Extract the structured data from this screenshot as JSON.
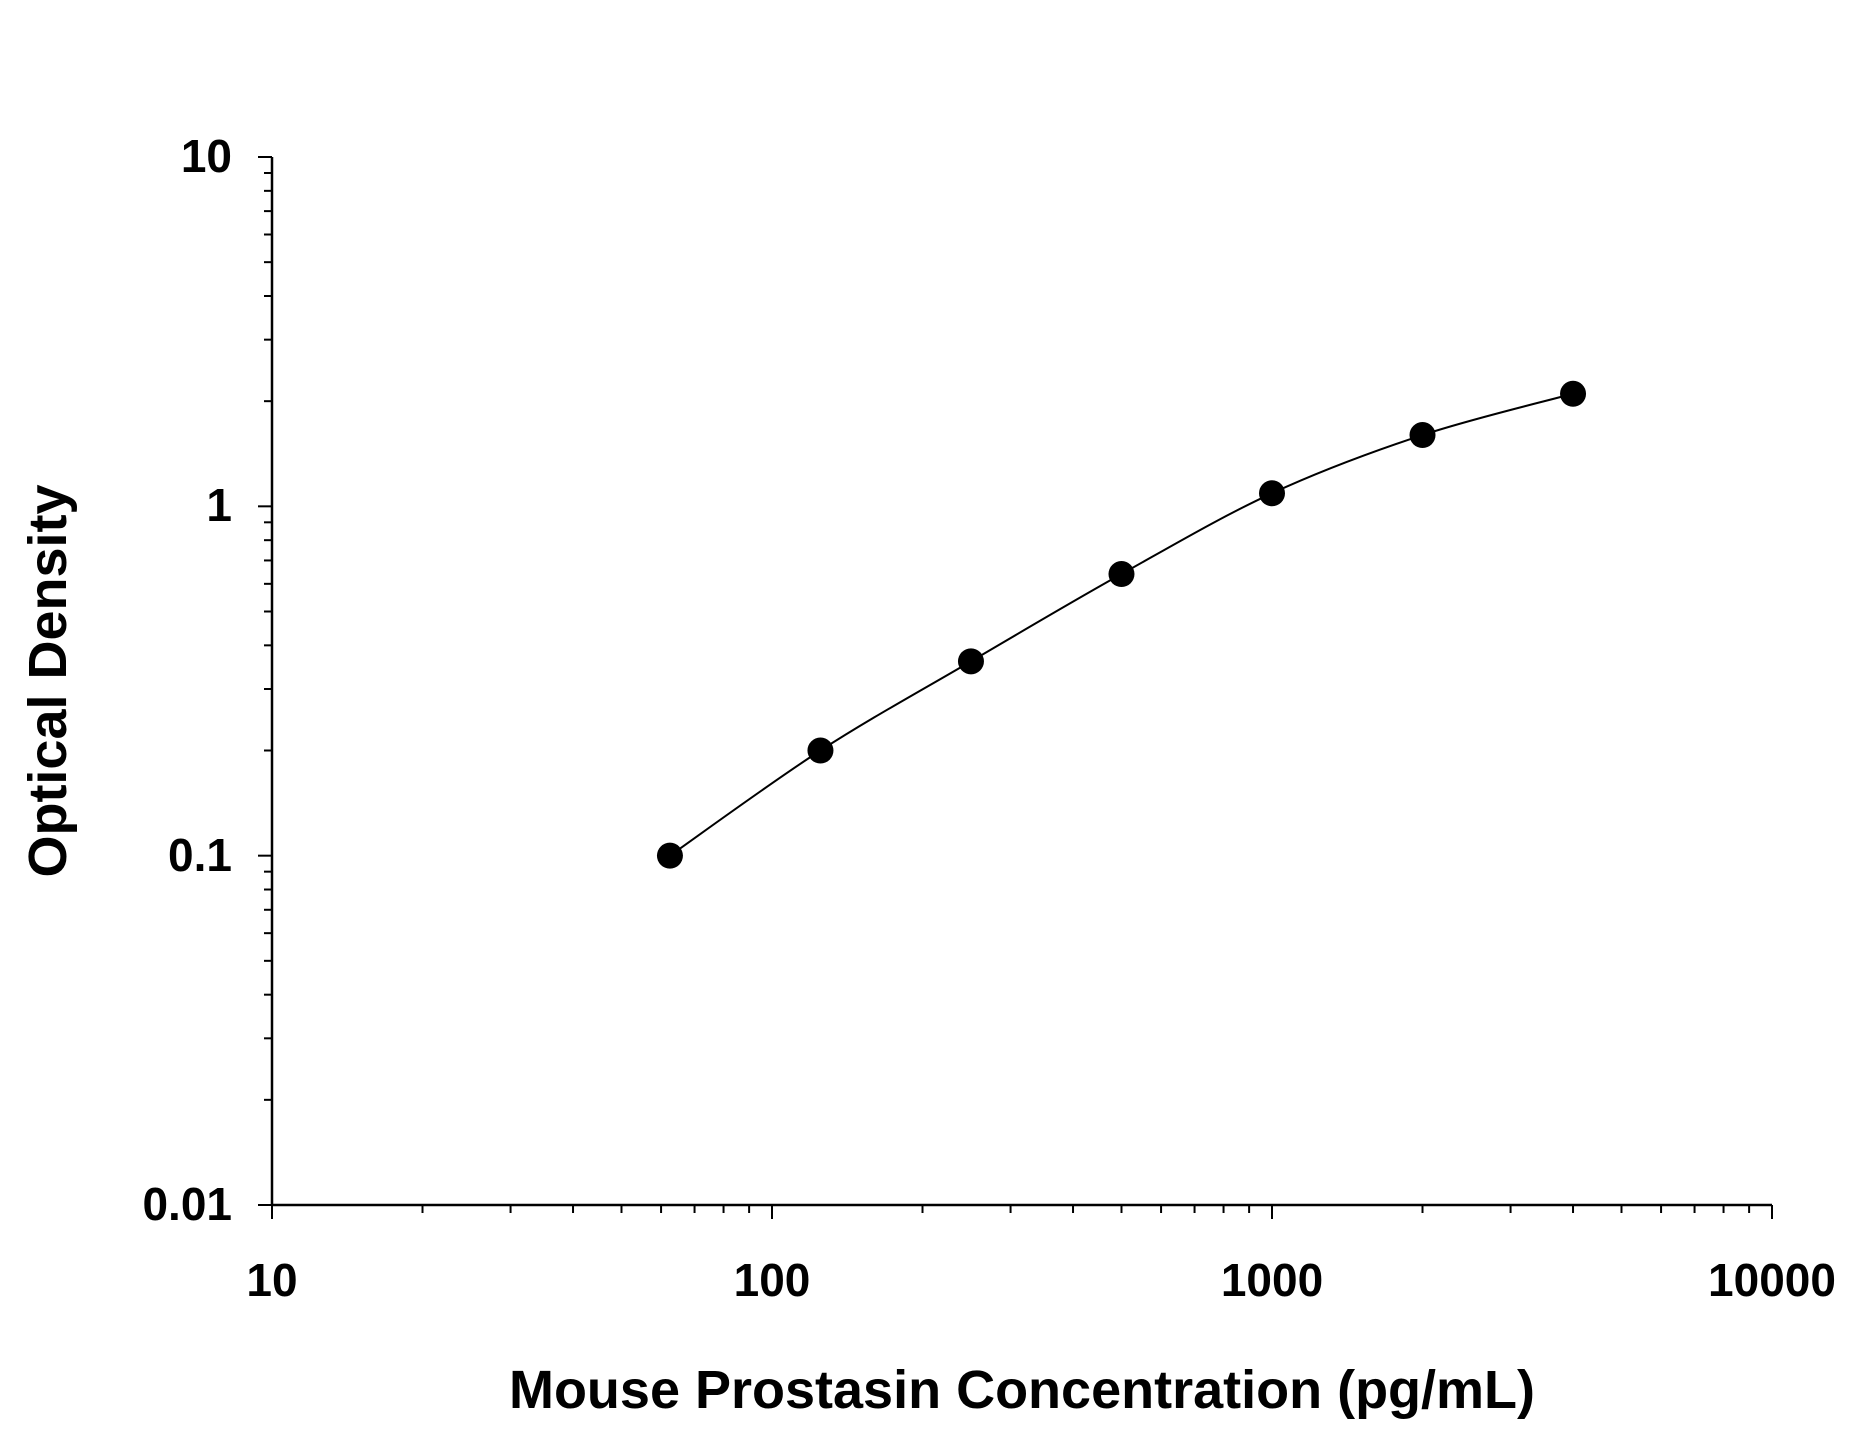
{
  "chart_data": {
    "type": "scatter",
    "title": "",
    "xlabel": "Mouse Prostasin Concentration (pg/mL)",
    "ylabel": "Optical Density",
    "x_scale": "log",
    "y_scale": "log",
    "xlim": [
      10,
      10000
    ],
    "ylim": [
      0.01,
      10
    ],
    "x_ticks": [
      "10",
      "100",
      "1000",
      "10000"
    ],
    "y_ticks": [
      "0.01",
      "0.1",
      "1",
      "10"
    ],
    "grid": false,
    "fit_curve": true,
    "marker_color": "#000000",
    "series": [
      {
        "x": [
          62.5,
          125,
          250,
          500,
          1000,
          2000,
          4000
        ],
        "y": [
          0.1,
          0.2,
          0.36,
          0.64,
          1.09,
          1.6,
          2.1
        ]
      }
    ]
  }
}
